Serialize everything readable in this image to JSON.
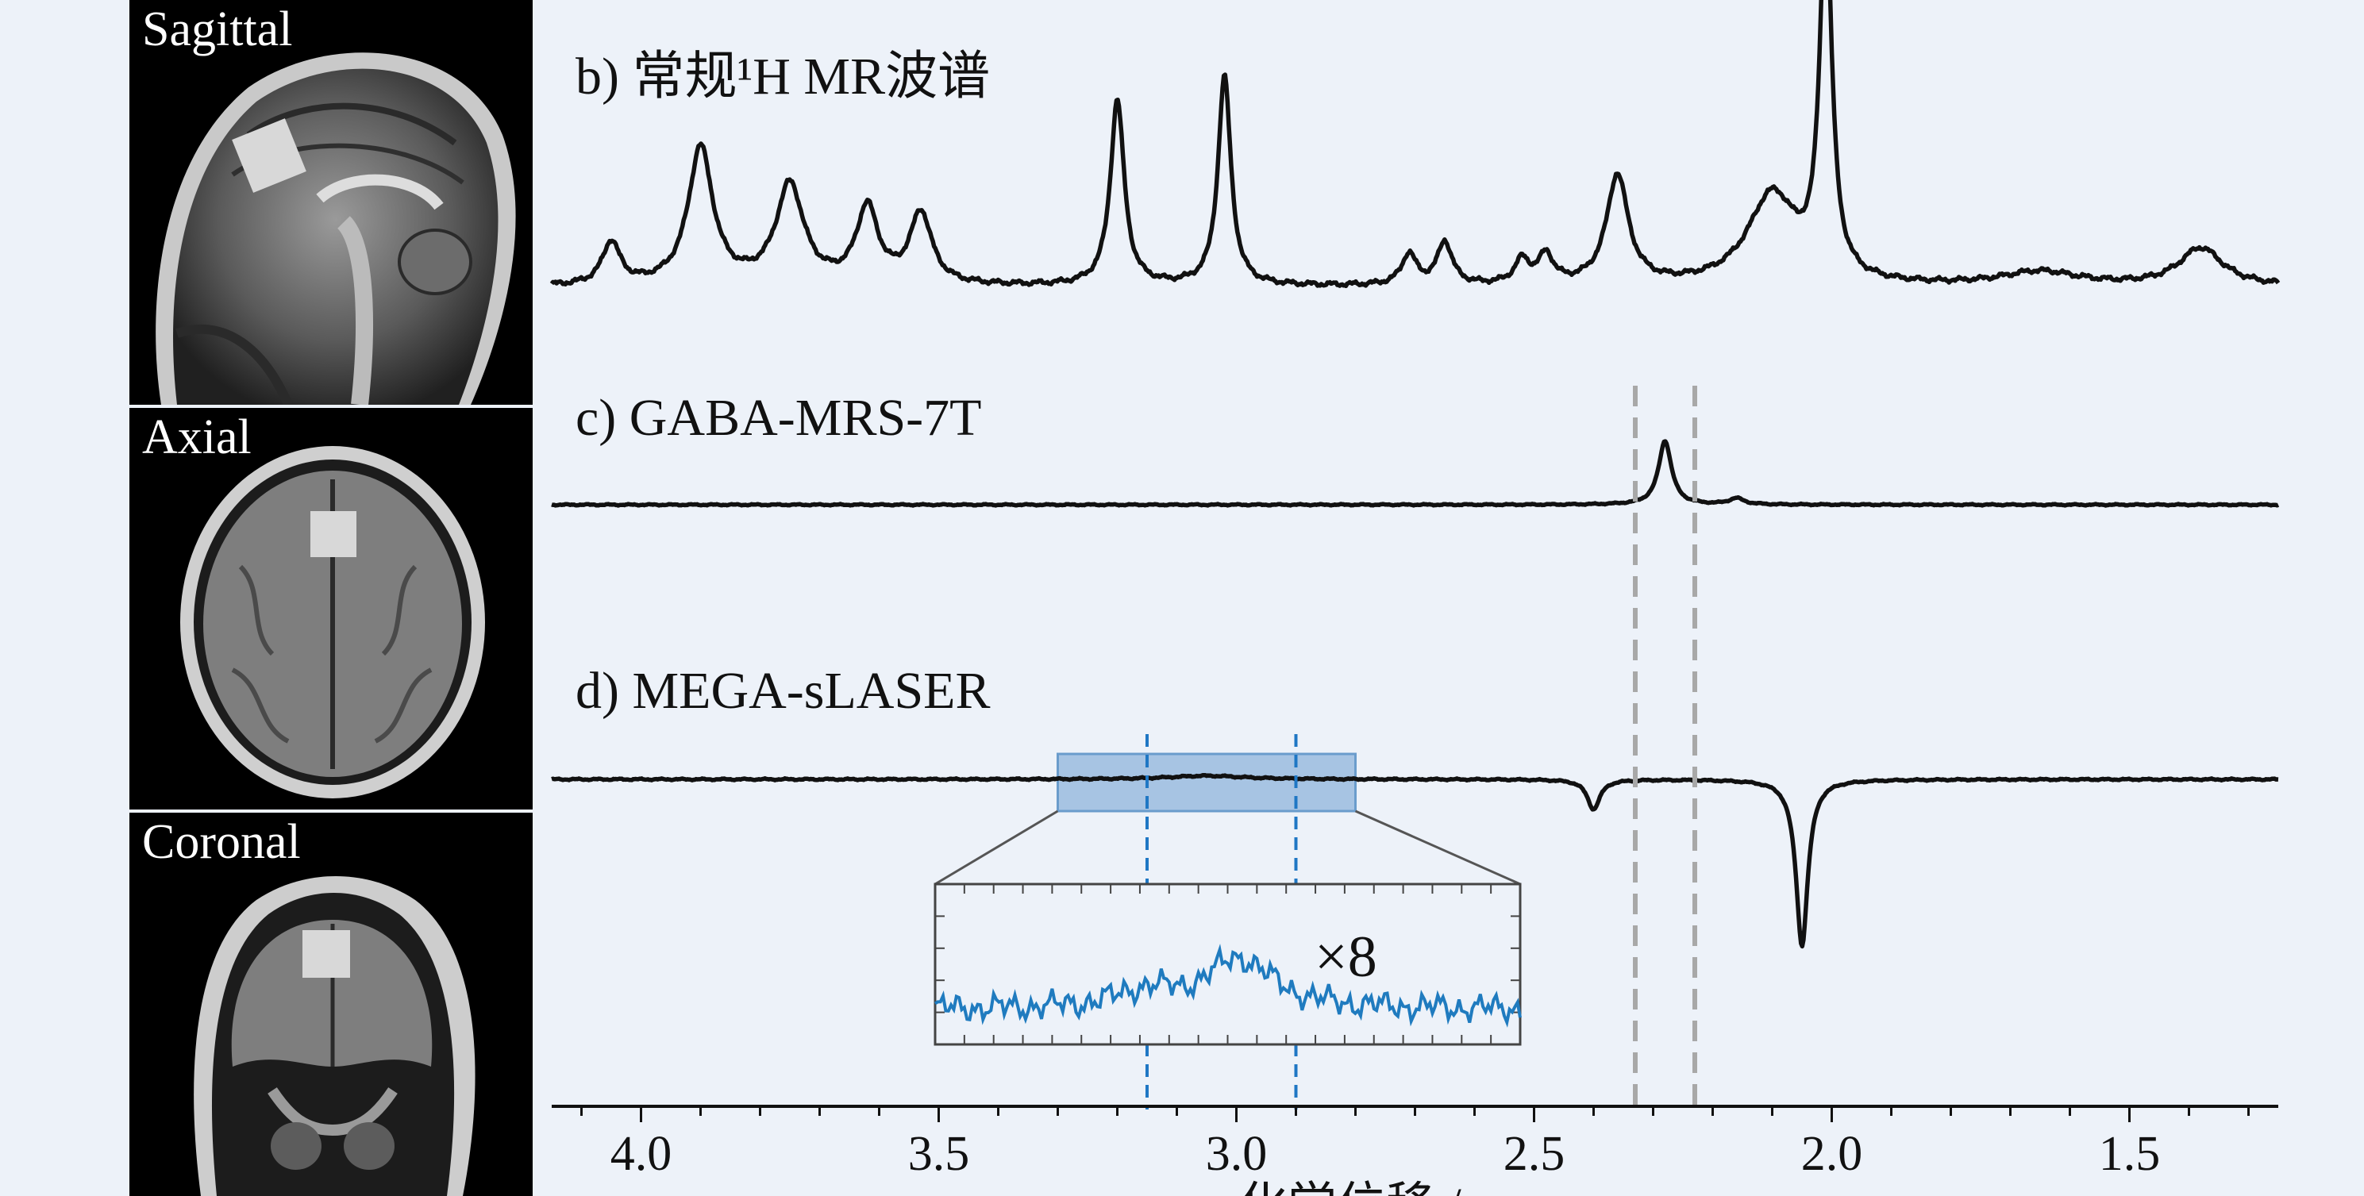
{
  "mri": {
    "sagittal": "Sagittal",
    "axial": "Axial",
    "coronal": "Coronal"
  },
  "chart_data": {
    "type": "line",
    "xlabel": "化学位移 / ppm",
    "xlim": [
      4.15,
      1.25
    ],
    "xticks": [
      4.0,
      3.5,
      3.0,
      2.5,
      2.0,
      1.5
    ],
    "xtick_labels": [
      "4.0",
      "3.5",
      "3.0",
      "2.5",
      "2.0",
      "1.5"
    ],
    "gaba_markers_ppm": [
      2.33,
      2.23
    ],
    "highlight_range_ppm": [
      3.3,
      2.8
    ],
    "highlight_markers_ppm": [
      3.15,
      2.9
    ],
    "inset_label": "×8",
    "colors": {
      "trace": "#111111",
      "marker_gray": "#a8a8a8",
      "highlight_fill": "#8fb4db",
      "highlight_stroke": "#6a9ccc",
      "inset_trace": "#1f7bbf",
      "inset_marker": "#1f77c4"
    },
    "series": [
      {
        "label": "b) 常规¹H MR波谱",
        "baseline": 0,
        "peaks": [
          {
            "ppm": 4.05,
            "amp": 0.18,
            "w": 0.018
          },
          {
            "ppm": 3.9,
            "amp": 0.58,
            "w": 0.025
          },
          {
            "ppm": 3.75,
            "amp": 0.42,
            "w": 0.028
          },
          {
            "ppm": 3.62,
            "amp": 0.32,
            "w": 0.022
          },
          {
            "ppm": 3.53,
            "amp": 0.3,
            "w": 0.022
          },
          {
            "ppm": 3.2,
            "amp": 0.78,
            "w": 0.014
          },
          {
            "ppm": 3.02,
            "amp": 0.88,
            "w": 0.013
          },
          {
            "ppm": 2.71,
            "amp": 0.13,
            "w": 0.015
          },
          {
            "ppm": 2.65,
            "amp": 0.18,
            "w": 0.015
          },
          {
            "ppm": 2.52,
            "amp": 0.1,
            "w": 0.015
          },
          {
            "ppm": 2.48,
            "amp": 0.12,
            "w": 0.015
          },
          {
            "ppm": 2.36,
            "amp": 0.46,
            "w": 0.022
          },
          {
            "ppm": 2.1,
            "amp": 0.38,
            "w": 0.05
          },
          {
            "ppm": 2.01,
            "amp": 1.55,
            "w": 0.012
          },
          {
            "ppm": 1.65,
            "amp": 0.06,
            "w": 0.08
          },
          {
            "ppm": 1.38,
            "amp": 0.16,
            "w": 0.045
          }
        ]
      },
      {
        "label": "c) GABA-MRS-7T",
        "baseline": 0,
        "peaks": [
          {
            "ppm": 2.28,
            "amp": 0.62,
            "w": 0.013
          },
          {
            "ppm": 2.16,
            "amp": 0.06,
            "w": 0.015
          }
        ]
      },
      {
        "label": "d) MEGA-sLASER",
        "baseline": 0,
        "peaks": [
          {
            "ppm": 2.4,
            "amp": -0.25,
            "w": 0.013
          },
          {
            "ppm": 2.05,
            "amp": -1.4,
            "w": 0.012
          },
          {
            "ppm": 3.05,
            "amp": 0.03,
            "w": 0.08
          }
        ]
      }
    ]
  }
}
